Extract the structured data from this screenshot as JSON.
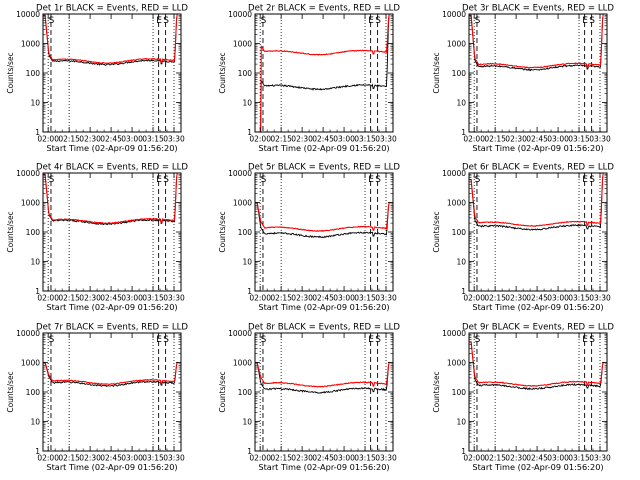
{
  "chart_data": {
    "type": "line",
    "grid_rows": 3,
    "grid_cols": 3,
    "shared": {
      "xlabel": "Start Time (02-Apr-09 01:56:20)",
      "ylabel": "Counts/sec",
      "x_ticks": [
        "02:00",
        "02:15",
        "02:30",
        "02:45",
        "03:00",
        "03:15",
        "03:30"
      ],
      "x_tick_minutes": [
        0,
        15,
        30,
        45,
        60,
        75,
        90
      ],
      "x_range_minutes": [
        -3.7,
        95
      ],
      "y_ticks": [
        "1",
        "10",
        "100",
        "1000",
        "10000"
      ],
      "y_tick_values": [
        1,
        10,
        100,
        1000,
        10000
      ],
      "ylim": [
        1,
        10000
      ],
      "y_scale": "log",
      "dotted_lines_minutes": [
        0,
        15,
        75,
        90
      ],
      "dashed_lines_minutes": [
        2,
        79,
        84
      ],
      "markers": [
        {
          "label": "S",
          "minutes": 1
        },
        {
          "label": "E",
          "minutes": 78
        },
        {
          "label": "S",
          "minutes": 83
        }
      ],
      "legend": {
        "black": "Events",
        "red": "LLD"
      },
      "colors": {
        "events": "#000000",
        "lld": "#ff0000"
      }
    },
    "panels": [
      {
        "title": "Det 1r BLACK = Events, RED = LLD",
        "black_level": 240,
        "red_level": 270,
        "spike_start": 9000,
        "spike_end": 10000
      },
      {
        "title": "Det 2r BLACK = Events, RED = LLD",
        "black_level": 35,
        "red_level": 520,
        "spike_start": 0,
        "spike_end": 10000
      },
      {
        "title": "Det 3r BLACK = Events, RED = LLD",
        "black_level": 160,
        "red_level": 190,
        "spike_start": 9000,
        "spike_end": 10000
      },
      {
        "title": "Det 4r BLACK = Events, RED = LLD",
        "black_level": 230,
        "red_level": 250,
        "spike_start": 9000,
        "spike_end": 10000
      },
      {
        "title": "Det 5r BLACK = Events, RED = LLD",
        "black_level": 85,
        "red_level": 135,
        "spike_start": 1000,
        "spike_end": 1000
      },
      {
        "title": "Det 6r BLACK = Events, RED = LLD",
        "black_level": 150,
        "red_level": 200,
        "spike_start": 6000,
        "spike_end": 10000
      },
      {
        "title": "Det 7r BLACK = Events, RED = LLD",
        "black_level": 200,
        "red_level": 230,
        "spike_start": 1000,
        "spike_end": 1000
      },
      {
        "title": "Det 8r BLACK = Events, RED = LLD",
        "black_level": 120,
        "red_level": 190,
        "spike_start": 1000,
        "spike_end": 1000
      },
      {
        "title": "Det 9r BLACK = Events, RED = LLD",
        "black_level": 160,
        "red_level": 200,
        "spike_start": 5000,
        "spike_end": 1000
      }
    ]
  }
}
